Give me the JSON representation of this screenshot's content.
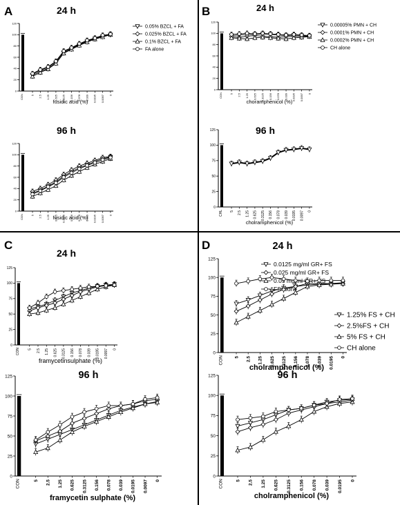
{
  "panels": [
    {
      "letter": "A"
    },
    {
      "letter": "B"
    },
    {
      "letter": "C"
    },
    {
      "letter": "D"
    }
  ],
  "chart_data": [
    {
      "type": "line",
      "panel": "A",
      "title": "24 h",
      "xlabel": "fusidic acid (%)",
      "ylabel": "",
      "ylim": [
        0,
        120
      ],
      "yticks": [
        "0",
        "20",
        "40",
        "60",
        "80",
        "100",
        "120"
      ],
      "control_label": "CON",
      "control_value": 100,
      "categories": [
        "5",
        "2.5",
        "1.25",
        "0.625",
        "0.3125",
        "0.156",
        "0.078",
        "0.039",
        "0.0195",
        "0.0097",
        "0"
      ],
      "legend": "top-right",
      "series": [
        {
          "name": "0.05% BZCL + FA",
          "values": [
            28,
            35,
            40,
            50,
            68,
            75,
            82,
            88,
            93,
            97,
            100
          ]
        },
        {
          "name": "0.025% BZCL + FA",
          "values": [
            30,
            37,
            42,
            52,
            70,
            76,
            83,
            89,
            94,
            98,
            101
          ]
        },
        {
          "name": "0.1% BZCL + FA",
          "values": [
            26,
            33,
            39,
            49,
            67,
            74,
            81,
            87,
            92,
            96,
            100
          ]
        },
        {
          "name": "FA alone",
          "values": [
            31,
            38,
            43,
            53,
            71,
            77,
            84,
            90,
            94,
            99,
            101
          ]
        }
      ]
    },
    {
      "type": "line",
      "panel": "A",
      "title": "96 h",
      "xlabel": "fusidic acid (%)",
      "ylabel": "",
      "ylim": [
        0,
        120
      ],
      "yticks": [
        "0",
        "20",
        "40",
        "60",
        "80",
        "100",
        "120"
      ],
      "control_label": "CON",
      "control_value": 100,
      "categories": [
        "5",
        "2.5",
        "1.25",
        "0.625",
        "0.3125",
        "0.156",
        "0.078",
        "0.039",
        "0.0195",
        "0.0097",
        "0"
      ],
      "series": [
        {
          "name": "0.05% BZCL + FA",
          "values": [
            32,
            37,
            44,
            52,
            62,
            70,
            77,
            82,
            88,
            93,
            96
          ]
        },
        {
          "name": "0.025% BZCL + FA",
          "values": [
            35,
            40,
            47,
            55,
            65,
            73,
            80,
            85,
            90,
            95,
            97
          ]
        },
        {
          "name": "0.1% BZCL + FA",
          "values": [
            26,
            32,
            38,
            45,
            55,
            63,
            70,
            77,
            83,
            88,
            93
          ]
        },
        {
          "name": "FA alone",
          "values": [
            30,
            36,
            43,
            50,
            60,
            68,
            75,
            81,
            86,
            91,
            95
          ]
        }
      ]
    },
    {
      "type": "line",
      "panel": "B",
      "title": "24 h",
      "xlabel": "choramphenicol (%)",
      "ylabel": "",
      "ylim": [
        0,
        120
      ],
      "yticks": [
        "0",
        "20",
        "40",
        "60",
        "80",
        "100",
        "120"
      ],
      "control_label": "CON",
      "control_value": 100,
      "categories": [
        "5",
        "2.5",
        "1.25",
        "0.625",
        "0.3125",
        "0.156",
        "0.078",
        "0.039",
        "0.0195",
        "0.0097",
        "0"
      ],
      "legend": "top-right",
      "series": [
        {
          "name": "0.00005% PMN + CH",
          "values": [
            96,
            97,
            98,
            98,
            99,
            98,
            97,
            96,
            97,
            96,
            95
          ]
        },
        {
          "name": "0.0001% PMN + CH",
          "values": [
            94,
            93,
            95,
            96,
            95,
            94,
            93,
            94,
            95,
            94,
            95
          ]
        },
        {
          "name": "0.0002% PMN + CH",
          "values": [
            92,
            91,
            90,
            92,
            93,
            92,
            91,
            90,
            92,
            93,
            94
          ]
        },
        {
          "name": "CH alone",
          "values": [
            98,
            99,
            100,
            99,
            100,
            99,
            98,
            97,
            98,
            97,
            96
          ]
        }
      ]
    },
    {
      "type": "line",
      "panel": "B",
      "title": "96 h",
      "xlabel": "cholramphenicol (%)",
      "ylabel": "",
      "ylim": [
        0,
        125
      ],
      "yticks": [
        "0",
        "25",
        "50",
        "75",
        "100",
        "125"
      ],
      "control_label": "CHL",
      "control_value": 100,
      "categories": [
        "5",
        "2.5",
        "1.25",
        "0.625",
        "0.3125",
        "0.156",
        "0.078",
        "0.039",
        "0.0195",
        "0.0097",
        "0"
      ],
      "series": [
        {
          "name": "",
          "values": [
            70,
            72,
            70,
            72,
            74,
            79,
            88,
            92,
            93,
            95,
            93
          ]
        }
      ]
    },
    {
      "type": "line",
      "panel": "C",
      "title": "24 h",
      "xlabel": "framycetinsulphate (%)",
      "ylabel": "",
      "ylim": [
        0,
        125
      ],
      "yticks": [
        "0",
        "25",
        "50",
        "75",
        "100",
        "125"
      ],
      "control_label": "CON",
      "control_value": 100,
      "categories": [
        "5",
        "2.5",
        "1.25",
        "0.625",
        "0.3125",
        "0.156",
        "0.078",
        "0.039",
        "0.0195",
        "0.0097",
        "0"
      ],
      "legend": "top-right",
      "series": [
        {
          "name": "0.0125 mg/ml GR+ FS",
          "values": [
            58,
            62,
            66,
            72,
            78,
            84,
            88,
            92,
            95,
            97,
            98
          ]
        },
        {
          "name": "0.025 mg/ml GR+ FS",
          "values": [
            55,
            60,
            64,
            68,
            74,
            80,
            86,
            90,
            94,
            96,
            97
          ]
        },
        {
          "name": "0.05 mg/ml GR+ FS",
          "values": [
            50,
            52,
            56,
            60,
            66,
            72,
            78,
            84,
            90,
            94,
            97
          ]
        },
        {
          "name": "FS alone",
          "values": [
            60,
            68,
            78,
            86,
            88,
            90,
            92,
            94,
            95,
            96,
            97
          ]
        }
      ]
    },
    {
      "type": "line",
      "panel": "C",
      "title": "96 h",
      "xlabel": "framycetin sulphate (%)",
      "ylabel": "",
      "ylim": [
        0,
        125
      ],
      "yticks": [
        "0",
        "25",
        "50",
        "75",
        "100",
        "125"
      ],
      "control_label": "CON",
      "control_value": 100,
      "categories": [
        "5",
        "2.5",
        "1.25",
        "0.625",
        "0.3125",
        "0.156",
        "0.078",
        "0.039",
        "0.0195",
        "0.0097",
        "0"
      ],
      "series": [
        {
          "name": "",
          "values": [
            40,
            46,
            52,
            58,
            64,
            70,
            76,
            82,
            86,
            90,
            93
          ]
        },
        {
          "name": "",
          "values": [
            44,
            50,
            56,
            66,
            72,
            78,
            84,
            88,
            90,
            94,
            96
          ]
        },
        {
          "name": "",
          "values": [
            30,
            35,
            45,
            55,
            62,
            68,
            74,
            80,
            85,
            90,
            92
          ]
        },
        {
          "name": "",
          "values": [
            45,
            55,
            64,
            74,
            80,
            84,
            88,
            88,
            90,
            96,
            98
          ]
        }
      ]
    },
    {
      "type": "line",
      "panel": "D",
      "title": "24 h",
      "xlabel": "cholramphenicol (%)",
      "ylabel": "",
      "ylim": [
        0,
        125
      ],
      "yticks": [
        "0",
        "25",
        "50",
        "75",
        "100",
        "125"
      ],
      "control_label": "CON",
      "control_value": 100,
      "categories": [
        "5",
        "2.5",
        "1.25",
        "0.625",
        "0.3125",
        "0.156",
        "0.078",
        "0.039",
        "0.0195",
        "0"
      ],
      "legend": "right",
      "series": [
        {
          "name": "1.25% FS + CH",
          "values": [
            65,
            70,
            76,
            82,
            86,
            88,
            90,
            91,
            92,
            93
          ]
        },
        {
          "name": "2.5%FS + CH",
          "values": [
            55,
            62,
            70,
            78,
            84,
            88,
            92,
            92,
            92,
            92
          ]
        },
        {
          "name": "5% FS + CH",
          "values": [
            40,
            48,
            56,
            64,
            72,
            80,
            88,
            90,
            91,
            92
          ]
        },
        {
          "name": "CH alone",
          "values": [
            92,
            95,
            98,
            100,
            98,
            96,
            95,
            96,
            96,
            96
          ]
        }
      ]
    },
    {
      "type": "line",
      "panel": "D",
      "title": "96 h",
      "xlabel": "cholramphenicol (%)",
      "ylabel": "",
      "ylim": [
        0,
        125
      ],
      "yticks": [
        "0",
        "25",
        "50",
        "75",
        "100",
        "125"
      ],
      "control_label": "CON",
      "control_value": 100,
      "categories": [
        "5",
        "2.5",
        "1.25",
        "0.625",
        "0.3125",
        "0.156",
        "0.078",
        "0.039",
        "0.0195",
        "0"
      ],
      "series": [
        {
          "name": "",
          "values": [
            62,
            66,
            70,
            76,
            82,
            84,
            88,
            92,
            94,
            95
          ]
        },
        {
          "name": "",
          "values": [
            55,
            60,
            64,
            70,
            78,
            82,
            86,
            90,
            92,
            94
          ]
        },
        {
          "name": "",
          "values": [
            32,
            36,
            45,
            55,
            62,
            70,
            80,
            86,
            90,
            92
          ]
        },
        {
          "name": "",
          "values": [
            70,
            72,
            74,
            80,
            82,
            84,
            88,
            90,
            95,
            96
          ]
        }
      ]
    }
  ]
}
